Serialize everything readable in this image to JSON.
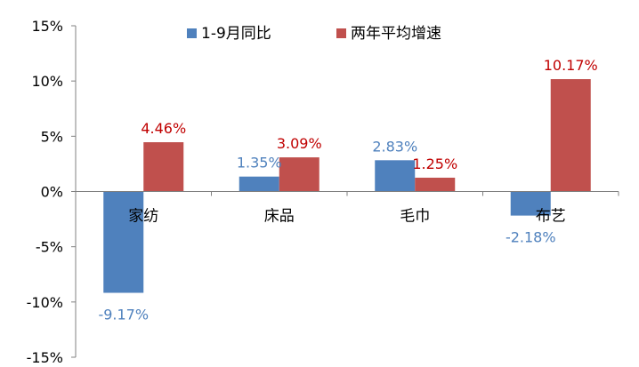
{
  "chart_data": {
    "type": "bar",
    "title": "",
    "xlabel": "",
    "ylabel": "",
    "categories": [
      "家纺",
      "床品",
      "毛巾",
      "布艺"
    ],
    "series": [
      {
        "name": "1-9月同比",
        "values": [
          -9.17,
          1.35,
          2.83,
          -2.18
        ],
        "color": "#4F81BD",
        "label_color": "#4F81BD",
        "labels": [
          "-9.17%",
          "1.35%",
          "2.83%",
          "-2.18%"
        ]
      },
      {
        "name": "两年平均增速",
        "values": [
          4.46,
          3.09,
          1.25,
          10.17
        ],
        "color": "#C0504D",
        "label_color": "#C00000",
        "labels": [
          "4.46%",
          "3.09%",
          "1.25%",
          "10.17%"
        ]
      }
    ],
    "ylim": [
      -15,
      15
    ],
    "yticks": [
      15,
      10,
      5,
      0,
      -5,
      -10,
      -15
    ],
    "ytick_labels": [
      "15%",
      "10%",
      "5%",
      "0%",
      "-5%",
      "-10%",
      "-15%"
    ],
    "legend_position": "top-center",
    "grid": false
  }
}
